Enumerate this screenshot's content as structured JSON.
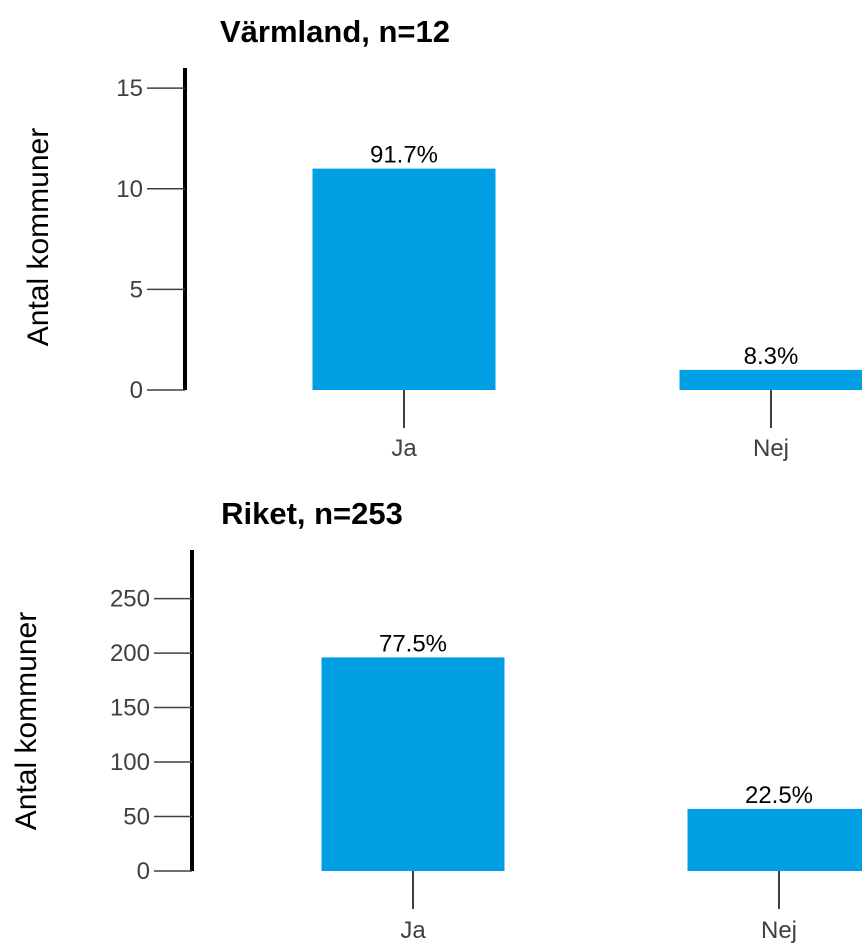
{
  "chart_data": [
    {
      "type": "bar",
      "title": "Värmland, n=12",
      "ylabel": "Antal kommuner",
      "xlabel": "",
      "categories": [
        "Ja",
        "Nej"
      ],
      "values": [
        11,
        1
      ],
      "data_labels": [
        "91.7%",
        "8.3%"
      ],
      "ylim": [
        0,
        16
      ],
      "yticks": [
        0,
        5,
        10,
        15
      ],
      "bar_color": "#009fe3",
      "grid": false,
      "legend": "none"
    },
    {
      "type": "bar",
      "title": "Riket, n=253",
      "ylabel": "Antal kommuner",
      "xlabel": "",
      "categories": [
        "Ja",
        "Nej"
      ],
      "values": [
        196,
        57
      ],
      "data_labels": [
        "77.5%",
        "22.5%"
      ],
      "ylim": [
        0,
        290
      ],
      "yticks": [
        0,
        50,
        100,
        150,
        200,
        250
      ],
      "bar_color": "#009fe3",
      "grid": false,
      "legend": "none"
    }
  ]
}
